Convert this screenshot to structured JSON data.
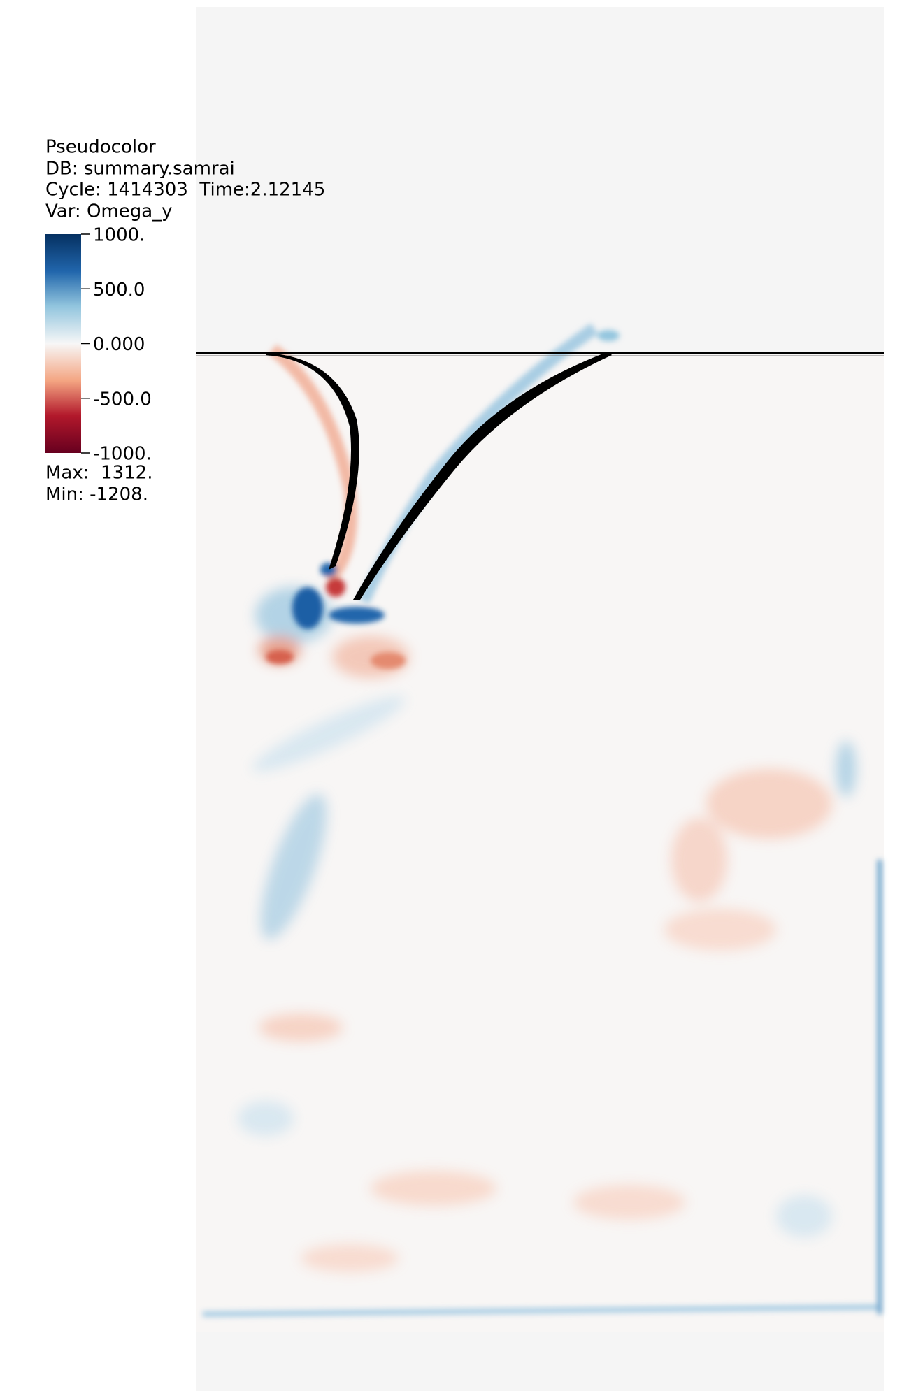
{
  "legend": {
    "plot_type": "Pseudocolor",
    "database": "DB: summary.samrai",
    "cycle_time": "Cycle: 1414303  Time:2.12145",
    "variable": "Var: Omega_y",
    "colorbar_labels": [
      "1000.",
      "500.0",
      "0.000",
      "-500.0",
      "-1000."
    ],
    "max": "Max:  1312.",
    "min": "Min: -1208."
  }
}
